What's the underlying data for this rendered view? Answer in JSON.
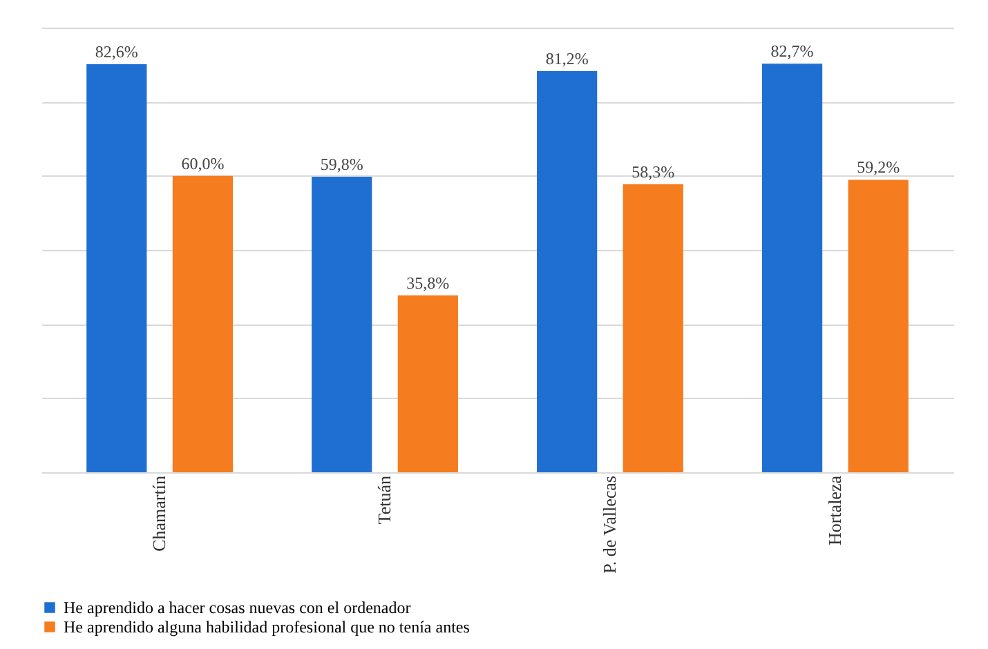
{
  "chart_data": {
    "type": "bar",
    "categories": [
      "Chamartín",
      "Tetuán",
      "P. de Vallecas",
      "Hortaleza"
    ],
    "series": [
      {
        "name": "He aprendido a hacer cosas nuevas con el ordenador",
        "color": "#1f6fd2",
        "values": [
          82.6,
          59.8,
          81.2,
          82.7
        ],
        "value_labels": [
          "82,6%",
          "59,8%",
          "81,2%",
          "82,7%"
        ]
      },
      {
        "name": "He aprendido alguna habilidad profesional que no tenía antes",
        "color": "#f57c1f",
        "values": [
          60.0,
          35.8,
          58.3,
          59.2
        ],
        "value_labels": [
          "60,0%",
          "35,8%",
          "58,3%",
          "59,2%"
        ]
      }
    ],
    "ylim": [
      0,
      90
    ],
    "yticks": [
      {
        "value": 0,
        "label": null
      },
      {
        "value": 15,
        "label": null
      },
      {
        "value": 30,
        "label": null
      },
      {
        "value": 45,
        "label": null
      },
      {
        "value": 60,
        "label": null
      },
      {
        "value": 75,
        "label": null
      },
      {
        "value": 90,
        "label": null
      }
    ],
    "grid": "y",
    "tick_labels": "x",
    "legend": "bottom",
    "marker": "square"
  }
}
